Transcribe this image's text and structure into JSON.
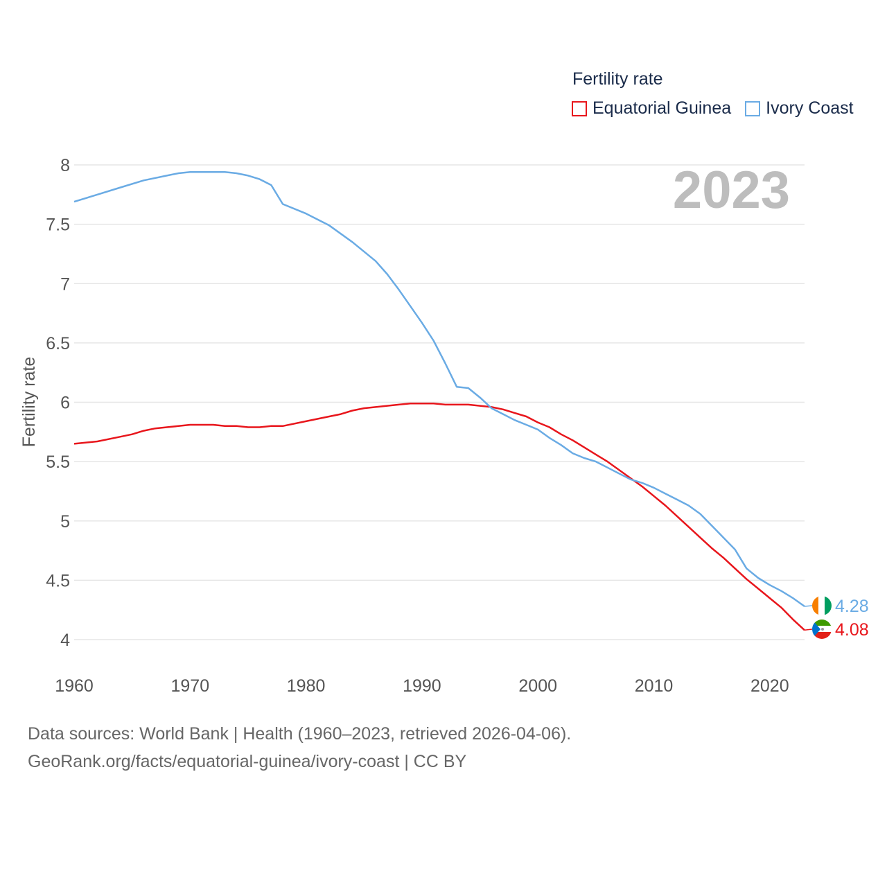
{
  "legend": {
    "title": "Fertility rate",
    "items": [
      {
        "name": "Equatorial Guinea",
        "color": "#e8161c"
      },
      {
        "name": "Ivory Coast",
        "color": "#6aabe4"
      }
    ]
  },
  "year_label": "2023",
  "footer": {
    "line1": "Data sources: World Bank | Health (1960–2023, retrieved 2026-04-06).",
    "line2": "GeoRank.org/facts/equatorial-guinea/ivory-coast | CC BY"
  },
  "chart_data": {
    "type": "line",
    "ylabel": "Fertility rate",
    "xlabel": "",
    "ylim": [
      3.7,
      8.15
    ],
    "xlim": [
      1960,
      2023
    ],
    "yticks": [
      4,
      4.5,
      5,
      5.5,
      6,
      6.5,
      7,
      7.5,
      8
    ],
    "ytick_labels": [
      "4",
      "4.5",
      "5",
      "5.5",
      "6",
      "6.5",
      "7",
      "7.5",
      "8"
    ],
    "xticks": [
      1960,
      1970,
      1980,
      1990,
      2000,
      2010,
      2020
    ],
    "xtick_labels": [
      "1960",
      "1970",
      "1980",
      "1990",
      "2000",
      "2010",
      "2020"
    ],
    "grid": true,
    "series": [
      {
        "name": "Equatorial Guinea",
        "color": "#e8161c",
        "end_label": "4.08",
        "x": [
          1960,
          1962,
          1964,
          1965,
          1966,
          1967,
          1968,
          1969,
          1970,
          1971,
          1972,
          1973,
          1974,
          1975,
          1976,
          1977,
          1978,
          1980,
          1982,
          1983,
          1984,
          1985,
          1986,
          1988,
          1989,
          1990,
          1991,
          1992,
          1993,
          1994,
          1995,
          1996,
          1997,
          1998,
          1999,
          2000,
          2001,
          2002,
          2003,
          2004,
          2005,
          2006,
          2007,
          2008,
          2009,
          2010,
          2011,
          2012,
          2013,
          2014,
          2015,
          2016,
          2017,
          2018,
          2019,
          2020,
          2021,
          2022,
          2023
        ],
        "values": [
          5.65,
          5.67,
          5.71,
          5.73,
          5.76,
          5.78,
          5.79,
          5.8,
          5.81,
          5.81,
          5.81,
          5.8,
          5.8,
          5.79,
          5.79,
          5.8,
          5.8,
          5.84,
          5.88,
          5.9,
          5.93,
          5.95,
          5.96,
          5.98,
          5.99,
          5.99,
          5.99,
          5.98,
          5.98,
          5.98,
          5.97,
          5.96,
          5.94,
          5.91,
          5.88,
          5.83,
          5.79,
          5.73,
          5.68,
          5.62,
          5.56,
          5.5,
          5.43,
          5.36,
          5.29,
          5.21,
          5.13,
          5.04,
          4.95,
          4.86,
          4.77,
          4.69,
          4.6,
          4.51,
          4.43,
          4.35,
          4.27,
          4.17,
          4.08
        ]
      },
      {
        "name": "Ivory Coast",
        "color": "#6aabe4",
        "end_label": "4.28",
        "x": [
          1960,
          1962,
          1964,
          1966,
          1968,
          1969,
          1970,
          1971,
          1972,
          1973,
          1974,
          1975,
          1976,
          1977,
          1978,
          1980,
          1982,
          1984,
          1986,
          1987,
          1988,
          1989,
          1990,
          1991,
          1992,
          1993,
          1994,
          1995,
          1996,
          1997,
          1998,
          1999,
          2000,
          2001,
          2002,
          2003,
          2004,
          2005,
          2006,
          2007,
          2008,
          2009,
          2010,
          2011,
          2012,
          2013,
          2014,
          2015,
          2016,
          2017,
          2018,
          2019,
          2020,
          2021,
          2022,
          2023
        ],
        "values": [
          7.69,
          7.75,
          7.81,
          7.87,
          7.91,
          7.93,
          7.94,
          7.94,
          7.94,
          7.94,
          7.93,
          7.91,
          7.88,
          7.83,
          7.67,
          7.59,
          7.49,
          7.35,
          7.19,
          7.08,
          6.95,
          6.81,
          6.67,
          6.52,
          6.33,
          6.13,
          6.12,
          6.04,
          5.95,
          5.9,
          5.85,
          5.81,
          5.77,
          5.7,
          5.64,
          5.57,
          5.53,
          5.5,
          5.45,
          5.4,
          5.35,
          5.32,
          5.28,
          5.23,
          5.18,
          5.13,
          5.06,
          4.96,
          4.86,
          4.76,
          4.6,
          4.52,
          4.46,
          4.41,
          4.35,
          4.28
        ]
      }
    ]
  }
}
